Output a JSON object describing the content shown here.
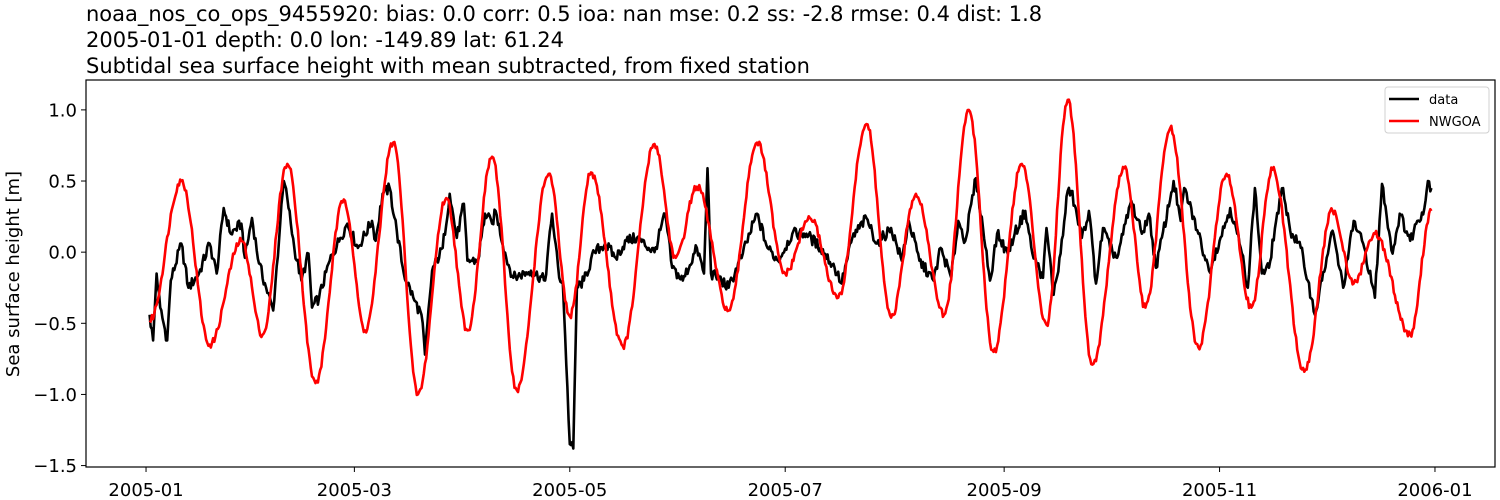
{
  "chart_data": {
    "type": "line",
    "title_lines": [
      "noaa_nos_co_ops_9455920: bias: 0.0  corr: 0.5  ioa: nan  mse: 0.2  ss: -2.8  rmse: 0.4  dist: 1.8",
      "2005-01-01 depth: 0.0 lon: -149.89 lat: 61.24",
      "Subtidal sea surface height with mean subtracted, from fixed station"
    ],
    "xlabel": "",
    "ylabel": "Sea surface height [m]",
    "xlim": [
      "2004-12-15",
      "2006-01-18"
    ],
    "ylim": [
      -1.51,
      1.21
    ],
    "x_ticks": [
      "2005-01",
      "2005-03",
      "2005-05",
      "2005-07",
      "2005-09",
      "2005-11",
      "2006-01"
    ],
    "y_ticks": [
      1.0,
      0.5,
      0.0,
      -0.5,
      -1.0,
      -1.5
    ],
    "y_tick_labels": [
      "1.0",
      "0.5",
      "0.0",
      "−0.5",
      "−1.0",
      "−1.5"
    ],
    "grid": false,
    "legend_placement": "top-right",
    "series": [
      {
        "name": "data",
        "color": "#000000",
        "points": [
          [
            "2005-01-02",
            -0.44
          ],
          [
            "2005-01-03",
            -0.62
          ],
          [
            "2005-01-04",
            -0.15
          ],
          [
            "2005-01-05",
            -0.39
          ],
          [
            "2005-01-07",
            -0.62
          ],
          [
            "2005-01-08",
            -0.2
          ],
          [
            "2005-01-11",
            0.06
          ],
          [
            "2005-01-13",
            -0.25
          ],
          [
            "2005-01-16",
            -0.15
          ],
          [
            "2005-01-19",
            0.06
          ],
          [
            "2005-01-21",
            -0.15
          ],
          [
            "2005-01-23",
            0.31
          ],
          [
            "2005-01-25",
            0.13
          ],
          [
            "2005-01-28",
            0.2
          ],
          [
            "2005-01-29",
            -0.04
          ],
          [
            "2005-01-31",
            0.24
          ],
          [
            "2005-02-02",
            -0.08
          ],
          [
            "2005-02-04",
            -0.25
          ],
          [
            "2005-02-06",
            -0.41
          ],
          [
            "2005-02-08",
            0.2
          ],
          [
            "2005-02-09",
            0.5
          ],
          [
            "2005-02-10",
            0.38
          ],
          [
            "2005-02-12",
            0.03
          ],
          [
            "2005-02-14",
            -0.2
          ],
          [
            "2005-02-16",
            -0.01
          ],
          [
            "2005-02-17",
            -0.39
          ],
          [
            "2005-02-19",
            -0.32
          ],
          [
            "2005-02-22",
            -0.06
          ],
          [
            "2005-02-25",
            0.1
          ],
          [
            "2005-02-27",
            0.2
          ],
          [
            "2005-03-02",
            0.03
          ],
          [
            "2005-03-06",
            0.22
          ],
          [
            "2005-03-07",
            0.08
          ],
          [
            "2005-03-09",
            0.41
          ],
          [
            "2005-03-11",
            0.45
          ],
          [
            "2005-03-13",
            0.15
          ],
          [
            "2005-03-15",
            -0.15
          ],
          [
            "2005-03-18",
            -0.34
          ],
          [
            "2005-03-20",
            -0.44
          ],
          [
            "2005-03-21",
            -0.72
          ],
          [
            "2005-03-23",
            -0.13
          ],
          [
            "2005-03-26",
            0.03
          ],
          [
            "2005-03-28",
            0.41
          ],
          [
            "2005-03-30",
            0.1
          ],
          [
            "2005-04-01",
            0.34
          ],
          [
            "2005-04-02",
            -0.06
          ],
          [
            "2005-04-05",
            -0.06
          ],
          [
            "2005-04-07",
            0.27
          ],
          [
            "2005-04-09",
            0.2
          ],
          [
            "2005-04-10",
            0.29
          ],
          [
            "2005-04-13",
            -0.04
          ],
          [
            "2005-04-15",
            -0.18
          ],
          [
            "2005-04-20",
            -0.13
          ],
          [
            "2005-04-24",
            -0.2
          ],
          [
            "2005-04-26",
            0.27
          ],
          [
            "2005-04-28",
            -0.18
          ],
          [
            "2005-04-29",
            -0.2
          ],
          [
            "2005-05-01",
            -1.35
          ],
          [
            "2005-05-02",
            -1.38
          ],
          [
            "2005-05-03",
            -0.25
          ],
          [
            "2005-05-05",
            -0.2
          ],
          [
            "2005-05-08",
            0.0
          ],
          [
            "2005-05-11",
            0.06
          ],
          [
            "2005-05-14",
            -0.04
          ],
          [
            "2005-05-17",
            0.08
          ],
          [
            "2005-05-20",
            0.1
          ],
          [
            "2005-05-25",
            0.0
          ],
          [
            "2005-05-28",
            0.27
          ],
          [
            "2005-05-30",
            -0.11
          ],
          [
            "2005-06-02",
            -0.2
          ],
          [
            "2005-06-06",
            0.03
          ],
          [
            "2005-06-08",
            -0.15
          ],
          [
            "2005-06-09",
            0.59
          ],
          [
            "2005-06-10",
            -0.15
          ],
          [
            "2005-06-13",
            -0.2
          ],
          [
            "2005-06-15",
            -0.25
          ],
          [
            "2005-06-19",
            -0.01
          ],
          [
            "2005-06-23",
            0.27
          ],
          [
            "2005-06-26",
            0.03
          ],
          [
            "2005-06-29",
            -0.06
          ],
          [
            "2005-07-03",
            0.13
          ],
          [
            "2005-07-07",
            0.13
          ],
          [
            "2005-07-11",
            0.03
          ],
          [
            "2005-07-15",
            -0.11
          ],
          [
            "2005-07-17",
            -0.22
          ],
          [
            "2005-07-20",
            0.1
          ],
          [
            "2005-07-24",
            0.24
          ],
          [
            "2005-07-27",
            0.06
          ],
          [
            "2005-07-31",
            0.17
          ],
          [
            "2005-08-03",
            -0.06
          ],
          [
            "2005-08-05",
            0.22
          ],
          [
            "2005-08-08",
            -0.06
          ],
          [
            "2005-08-12",
            -0.2
          ],
          [
            "2005-08-14",
            0.03
          ],
          [
            "2005-08-17",
            -0.18
          ],
          [
            "2005-08-19",
            0.22
          ],
          [
            "2005-08-21",
            0.08
          ],
          [
            "2005-08-24",
            0.52
          ],
          [
            "2005-08-26",
            0.17
          ],
          [
            "2005-08-28",
            -0.2
          ],
          [
            "2005-08-30",
            0.13
          ],
          [
            "2005-09-02",
            -0.01
          ],
          [
            "2005-09-04",
            0.13
          ],
          [
            "2005-09-07",
            0.29
          ],
          [
            "2005-09-09",
            -0.01
          ],
          [
            "2005-09-12",
            -0.18
          ],
          [
            "2005-09-13",
            0.17
          ],
          [
            "2005-09-15",
            -0.3
          ],
          [
            "2005-09-17",
            -0.01
          ],
          [
            "2005-09-19",
            0.43
          ],
          [
            "2005-09-20",
            0.43
          ],
          [
            "2005-09-23",
            0.1
          ],
          [
            "2005-09-25",
            0.29
          ],
          [
            "2005-09-27",
            -0.22
          ],
          [
            "2005-09-29",
            0.17
          ],
          [
            "2005-10-01",
            0.03
          ],
          [
            "2005-10-03",
            -0.04
          ],
          [
            "2005-10-07",
            0.36
          ],
          [
            "2005-10-10",
            0.13
          ],
          [
            "2005-10-12",
            0.27
          ],
          [
            "2005-10-14",
            -0.11
          ],
          [
            "2005-10-19",
            0.5
          ],
          [
            "2005-10-21",
            0.22
          ],
          [
            "2005-10-22",
            0.45
          ],
          [
            "2005-10-26",
            0.13
          ],
          [
            "2005-10-29",
            -0.13
          ],
          [
            "2005-11-01",
            0.08
          ],
          [
            "2005-11-04",
            0.31
          ],
          [
            "2005-11-07",
            0.03
          ],
          [
            "2005-11-09",
            -0.25
          ],
          [
            "2005-11-11",
            0.45
          ],
          [
            "2005-11-13",
            -0.15
          ],
          [
            "2005-11-15",
            -0.11
          ],
          [
            "2005-11-17",
            0.22
          ],
          [
            "2005-11-19",
            0.45
          ],
          [
            "2005-11-21",
            0.15
          ],
          [
            "2005-11-24",
            0.03
          ],
          [
            "2005-11-26",
            -0.2
          ],
          [
            "2005-11-28",
            -0.44
          ],
          [
            "2005-11-30",
            -0.2
          ],
          [
            "2005-12-03",
            0.15
          ],
          [
            "2005-12-06",
            -0.25
          ],
          [
            "2005-12-09",
            0.22
          ],
          [
            "2005-12-12",
            0.03
          ],
          [
            "2005-12-15",
            -0.32
          ],
          [
            "2005-12-17",
            0.48
          ],
          [
            "2005-12-20",
            -0.01
          ],
          [
            "2005-12-22",
            0.27
          ],
          [
            "2005-12-25",
            0.08
          ],
          [
            "2005-12-27",
            0.22
          ],
          [
            "2005-12-29",
            0.31
          ],
          [
            "2005-12-30",
            0.5
          ],
          [
            "2005-12-31",
            0.45
          ]
        ]
      },
      {
        "name": "NWGOA",
        "color": "#ff0000",
        "points": [
          [
            "2005-01-02",
            -0.48
          ],
          [
            "2005-01-11",
            0.5
          ],
          [
            "2005-01-19",
            -0.65
          ],
          [
            "2005-01-28",
            0.08
          ],
          [
            "2005-02-03",
            -0.58
          ],
          [
            "2005-02-10",
            0.62
          ],
          [
            "2005-02-18",
            -0.92
          ],
          [
            "2005-02-26",
            0.37
          ],
          [
            "2005-03-04",
            -0.55
          ],
          [
            "2005-03-12",
            0.77
          ],
          [
            "2005-03-19",
            -1.0
          ],
          [
            "2005-03-27",
            0.38
          ],
          [
            "2005-04-02",
            -0.55
          ],
          [
            "2005-04-09",
            0.67
          ],
          [
            "2005-04-16",
            -0.97
          ],
          [
            "2005-04-25",
            0.55
          ],
          [
            "2005-05-01",
            -0.45
          ],
          [
            "2005-05-07",
            0.56
          ],
          [
            "2005-05-16",
            -0.66
          ],
          [
            "2005-05-25",
            0.76
          ],
          [
            "2005-05-31",
            -0.04
          ],
          [
            "2005-06-06",
            0.46
          ],
          [
            "2005-06-15",
            -0.41
          ],
          [
            "2005-06-23",
            0.77
          ],
          [
            "2005-07-01",
            -0.15
          ],
          [
            "2005-07-08",
            0.24
          ],
          [
            "2005-07-16",
            -0.32
          ],
          [
            "2005-07-24",
            0.9
          ],
          [
            "2005-07-31",
            -0.46
          ],
          [
            "2005-08-07",
            0.41
          ],
          [
            "2005-08-15",
            -0.44
          ],
          [
            "2005-08-22",
            1.0
          ],
          [
            "2005-08-29",
            -0.7
          ],
          [
            "2005-09-06",
            0.62
          ],
          [
            "2005-09-13",
            -0.51
          ],
          [
            "2005-09-19",
            1.07
          ],
          [
            "2005-09-26",
            -0.79
          ],
          [
            "2005-10-05",
            0.59
          ],
          [
            "2005-10-11",
            -0.39
          ],
          [
            "2005-10-18",
            0.87
          ],
          [
            "2005-10-26",
            -0.67
          ],
          [
            "2005-11-03",
            0.55
          ],
          [
            "2005-11-10",
            -0.39
          ],
          [
            "2005-11-16",
            0.58
          ],
          [
            "2005-11-25",
            -0.84
          ],
          [
            "2005-12-03",
            0.29
          ],
          [
            "2005-12-09",
            -0.22
          ],
          [
            "2005-12-15",
            0.13
          ],
          [
            "2005-12-25",
            -0.58
          ],
          [
            "2005-12-31",
            0.29
          ]
        ]
      }
    ]
  }
}
